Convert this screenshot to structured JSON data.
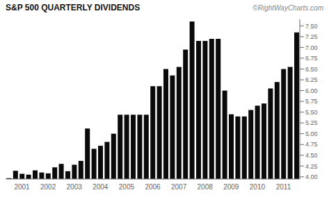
{
  "chart_data": {
    "type": "bar",
    "title": "S&P 500 QUARTERLY DIVIDENDS",
    "annotations": [
      "©RightWayCharts.com"
    ],
    "categories": [
      null,
      null,
      "2001",
      null,
      null,
      null,
      "2002",
      null,
      null,
      null,
      "2003",
      null,
      null,
      null,
      "2004",
      null,
      null,
      null,
      "2005",
      null,
      null,
      null,
      "2006",
      null,
      null,
      null,
      "2007",
      null,
      null,
      null,
      "2008",
      null,
      null,
      null,
      "2009",
      null,
      null,
      null,
      "2010",
      null,
      null,
      null,
      "2011",
      null,
      null
    ],
    "values": [
      3.97,
      4.14,
      4.07,
      4.05,
      4.15,
      4.1,
      4.08,
      4.22,
      4.3,
      4.13,
      4.28,
      4.37,
      5.12,
      4.65,
      4.72,
      4.81,
      5.0,
      5.44,
      5.44,
      5.44,
      5.44,
      5.44,
      6.1,
      6.1,
      6.5,
      6.35,
      6.55,
      6.95,
      7.6,
      7.15,
      7.15,
      7.2,
      7.2,
      6.0,
      5.45,
      5.4,
      5.4,
      5.55,
      5.65,
      5.7,
      6.05,
      6.2,
      6.5,
      6.55,
      7.35
    ],
    "color": "#0a0a0a",
    "ylim": [
      3.95,
      7.65
    ],
    "yticks": [
      {
        "value": 4,
        "label": "4.00"
      },
      4.25,
      {
        "value": 4.5,
        "label": "4.50"
      },
      4.75,
      {
        "value": 5,
        "label": "5.00"
      },
      5.25,
      {
        "value": 5.5,
        "label": "5.50"
      },
      5.75,
      {
        "value": 6,
        "label": "6.00"
      },
      6.25,
      {
        "value": 6.5,
        "label": "6.50"
      },
      6.75,
      {
        "value": 7,
        "label": "7.00"
      },
      7.25,
      {
        "value": 7.5,
        "label": "7.50"
      }
    ],
    "grid": false
  }
}
